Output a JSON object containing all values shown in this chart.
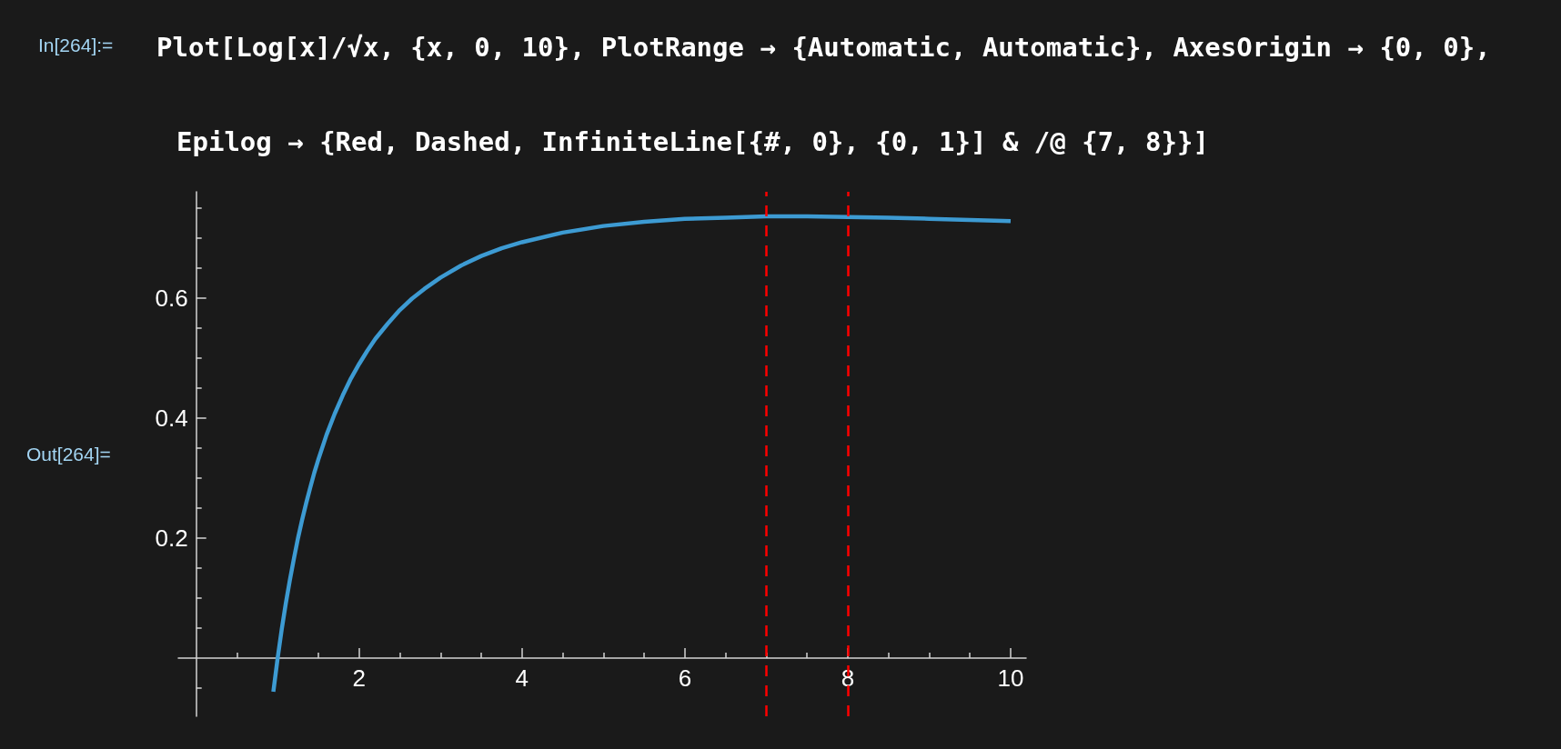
{
  "chart_data": {
    "type": "line",
    "title": "Plot[Log[x]/√x, {x, 0, 10}, PlotRange → {Automatic, Automatic}, AxesOrigin → {0, 0}, Epilog → {Red, Dashed, InfiniteLine[{#, 0}, {0, 1}] & /@ {7, 8}}]",
    "annotations": [
      "In[264]:=",
      "Out[264]="
    ],
    "x": [
      0.947,
      1,
      1.05,
      1.1,
      1.15,
      1.2,
      1.25,
      1.3,
      1.35,
      1.4,
      1.45,
      1.5,
      1.6,
      1.7,
      1.8,
      1.9,
      2,
      2.1,
      2.2,
      2.35,
      2.5,
      2.65,
      2.8,
      3,
      3.25,
      3.5,
      3.75,
      4,
      4.5,
      5,
      5.5,
      6,
      6.5,
      7,
      7.5,
      8,
      8.5,
      9,
      9.5,
      10
    ],
    "values": [
      -0.056,
      0,
      0.048,
      0.091,
      0.13,
      0.166,
      0.2,
      0.23,
      0.258,
      0.284,
      0.309,
      0.331,
      0.372,
      0.407,
      0.438,
      0.466,
      0.49,
      0.512,
      0.532,
      0.557,
      0.58,
      0.599,
      0.615,
      0.634,
      0.654,
      0.67,
      0.683,
      0.693,
      0.709,
      0.72,
      0.727,
      0.732,
      0.734,
      0.736,
      0.736,
      0.735,
      0.734,
      0.732,
      0.73,
      0.728
    ],
    "color": "#3d9bd3",
    "marker": "none",
    "line_style": "solid",
    "grid": false,
    "xlim": [
      -0.22,
      10.19
    ],
    "ylim": [
      -0.097,
      0.777
    ],
    "xticks": [
      {
        "value": 0.5,
        "label": null
      },
      {
        "value": 1,
        "label": null
      },
      {
        "value": 1.5,
        "label": null
      },
      2,
      {
        "value": 2.5,
        "label": null
      },
      {
        "value": 3,
        "label": null
      },
      {
        "value": 3.5,
        "label": null
      },
      4,
      {
        "value": 4.5,
        "label": null
      },
      {
        "value": 5,
        "label": null
      },
      {
        "value": 5.5,
        "label": null
      },
      6,
      {
        "value": 6.5,
        "label": null
      },
      {
        "value": 7,
        "label": null
      },
      {
        "value": 7.5,
        "label": null
      },
      8,
      {
        "value": 8.5,
        "label": null
      },
      {
        "value": 9,
        "label": null
      },
      {
        "value": 9.5,
        "label": null
      },
      10
    ],
    "yticks": [
      {
        "value": -0.05,
        "label": null
      },
      {
        "value": 0.05,
        "label": null
      },
      {
        "value": 0.1,
        "label": null
      },
      {
        "value": 0.15,
        "label": null
      },
      0.2,
      {
        "value": 0.25,
        "label": null
      },
      {
        "value": 0.3,
        "label": null
      },
      {
        "value": 0.35,
        "label": null
      },
      0.4,
      {
        "value": 0.45,
        "label": null
      },
      {
        "value": 0.5,
        "label": null
      },
      {
        "value": 0.55,
        "label": null
      },
      0.6,
      {
        "value": 0.65,
        "label": null
      },
      {
        "value": 0.7,
        "label": null
      },
      {
        "value": 0.75,
        "label": null
      }
    ],
    "ref_lines": [
      {
        "axis": "x",
        "value": 7,
        "color": "#ff0000",
        "line_style": "dashed"
      },
      {
        "axis": "x",
        "value": 8,
        "color": "#ff0000",
        "line_style": "dashed"
      }
    ]
  }
}
